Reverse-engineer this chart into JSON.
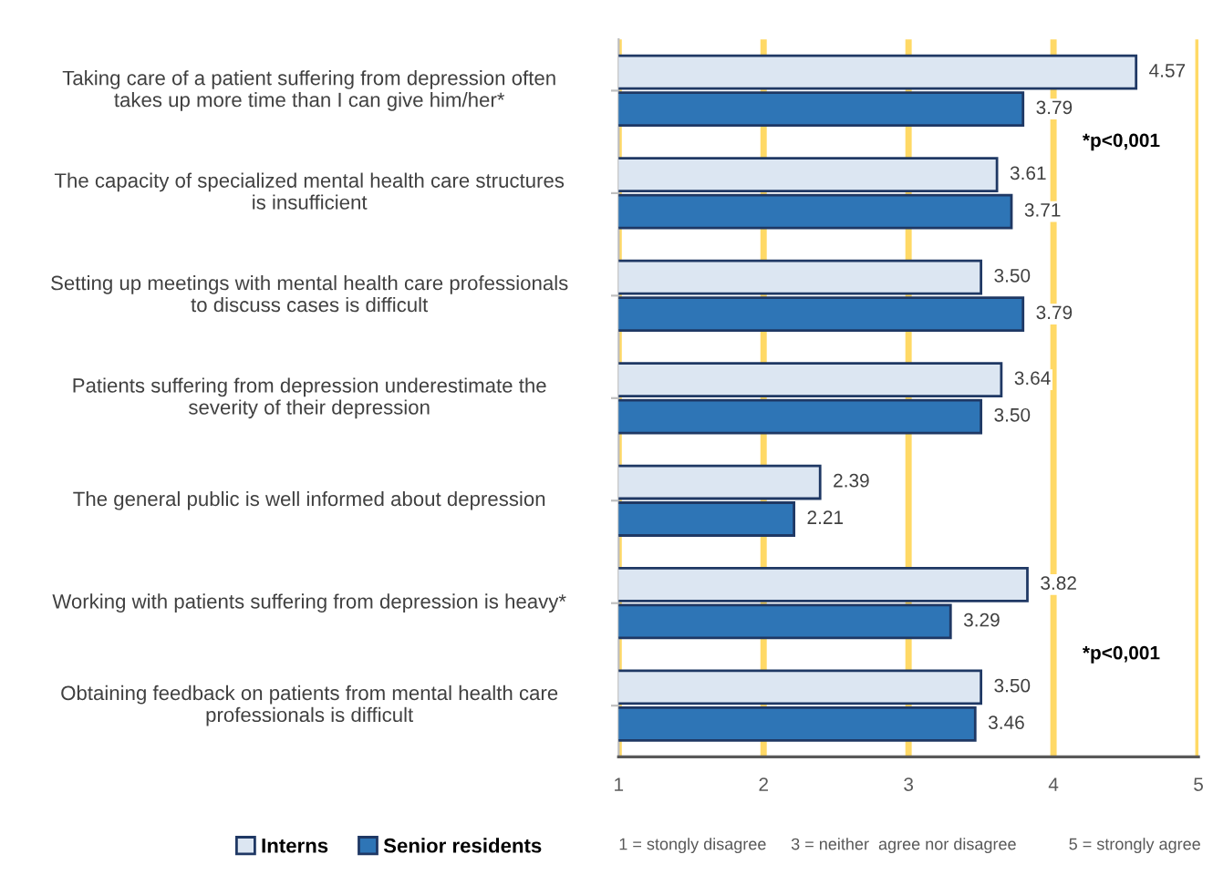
{
  "chart_data": {
    "type": "bar",
    "orientation": "horizontal",
    "categories": [
      "Taking care of a patient suffering from depression often\ntakes up more time than I can give him/her*",
      "The capacity of specialized mental health care structures\nis insufficient",
      "Setting up meetings with mental health care professionals\nto discuss cases is difficult",
      "Patients suffering from depression underestimate the\nseverity of their depression",
      "The general public is well informed about depression",
      "Working with patients suffering from depression is heavy*",
      "Obtaining feedback on patients from mental health care\nprofessionals is difficult"
    ],
    "series": [
      {
        "name": "Interns",
        "color": "#dce6f2",
        "values": [
          4.57,
          3.61,
          3.5,
          3.64,
          2.39,
          3.82,
          3.5
        ],
        "value_labels": [
          "4.57",
          "3.61",
          "3.50",
          "3.64",
          "2.39",
          "3.82",
          "3.50"
        ]
      },
      {
        "name": "Senior residents",
        "color": "#2e75b6",
        "values": [
          3.79,
          3.71,
          3.79,
          3.5,
          2.21,
          3.29,
          3.46
        ],
        "value_labels": [
          "3.79",
          "3.71",
          "3.79",
          "3.50",
          "2.21",
          "3.29",
          "3.46"
        ]
      }
    ],
    "xlim": [
      1,
      5
    ],
    "xticks": [
      1,
      2,
      3,
      4,
      5
    ],
    "grid": "x",
    "legend": "bottom left",
    "annotations": [
      "*p<0,001",
      "*p<0,001",
      "1 = stongly disagree",
      "3 = neither  agree nor disagree",
      "5 = strongly agree"
    ]
  }
}
